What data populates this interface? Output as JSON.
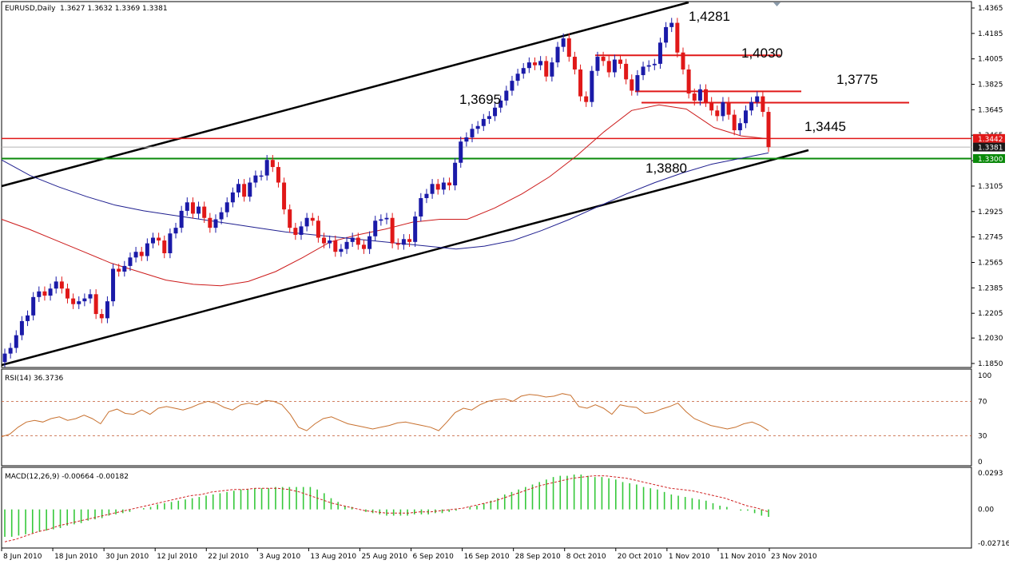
{
  "header": {
    "symbol_label": "EURUSD,Daily",
    "ohlc_label": "1.3627 1.3632 1.3369 1.3381"
  },
  "colors": {
    "bull": "#1a1aa8",
    "bear": "#e01818",
    "ma_fast": "#cc1a1a",
    "ma_slow": "#1f1f8f",
    "rsi": "#c8712f",
    "macd_hist": "#35c83a",
    "macd_signal": "#d02020",
    "trend": "#000000",
    "support": "#0a8a0a",
    "resistance": "#e01818"
  },
  "chart_data": [
    {
      "type": "candlestick",
      "panel": "main",
      "title": "EURUSD,Daily",
      "ohlc_readout": "1.3627 1.3632 1.3369 1.3381",
      "yaxis_ticks": [
        "1.4365",
        "1.4185",
        "1.4005",
        "1.3825",
        "1.3645",
        "1.3465",
        "1.3285",
        "1.3105",
        "1.2925",
        "1.2745",
        "1.2565",
        "1.2385",
        "1.2205",
        "1.2030",
        "1.1850"
      ],
      "ylim": [
        1.185,
        1.4365
      ],
      "xaxis_ticks": [
        "8 Jun 2010",
        "18 Jun 2010",
        "30 Jun 2010",
        "12 Jul 2010",
        "22 Jul 2010",
        "3 Aug 2010",
        "13 Aug 2010",
        "25 Aug 2010",
        "6 Sep 2010",
        "16 Sep 2010",
        "28 Sep 2010",
        "8 Oct 2010",
        "20 Oct 2010",
        "1 Nov 2010",
        "11 Nov 2010",
        "23 Nov 2010"
      ],
      "price_labels": [
        {
          "text": "1.3442",
          "value": 1.3442,
          "style": "red"
        },
        {
          "text": "1.3381",
          "value": 1.3381,
          "style": "dark"
        },
        {
          "text": "1.3300",
          "value": 1.33,
          "style": "green"
        }
      ],
      "annotations": [
        {
          "text": "1,4281"
        },
        {
          "text": "1,4030"
        },
        {
          "text": "1,3775"
        },
        {
          "text": "1,3695"
        },
        {
          "text": "1,3445"
        },
        {
          "text": "1,3880"
        }
      ],
      "candles_close": [
        1.192,
        1.196,
        1.205,
        1.215,
        1.219,
        1.232,
        1.236,
        1.233,
        1.238,
        1.243,
        1.238,
        1.231,
        1.227,
        1.229,
        1.231,
        1.234,
        1.22,
        1.217,
        1.229,
        1.252,
        1.25,
        1.254,
        1.26,
        1.264,
        1.261,
        1.27,
        1.274,
        1.272,
        1.263,
        1.277,
        1.281,
        1.293,
        1.299,
        1.291,
        1.296,
        1.288,
        1.281,
        1.287,
        1.292,
        1.299,
        1.306,
        1.312,
        1.303,
        1.313,
        1.318,
        1.318,
        1.329,
        1.324,
        1.313,
        1.294,
        1.281,
        1.276,
        1.282,
        1.288,
        1.286,
        1.274,
        1.27,
        1.272,
        1.264,
        1.266,
        1.271,
        1.274,
        1.269,
        1.266,
        1.275,
        1.286,
        1.287,
        1.288,
        1.27,
        1.269,
        1.273,
        1.271,
        1.289,
        1.302,
        1.305,
        1.312,
        1.308,
        1.313,
        1.311,
        1.327,
        1.342,
        1.345,
        1.351,
        1.353,
        1.358,
        1.36,
        1.366,
        1.371,
        1.378,
        1.385,
        1.39,
        1.394,
        1.398,
        1.396,
        1.399,
        1.388,
        1.398,
        1.409,
        1.415,
        1.402,
        1.393,
        1.374,
        1.37,
        1.392,
        1.402,
        1.399,
        1.391,
        1.4,
        1.397,
        1.386,
        1.378,
        1.389,
        1.395,
        1.396,
        1.397,
        1.412,
        1.423,
        1.426,
        1.405,
        1.393,
        1.376,
        1.371,
        1.379,
        1.37,
        1.364,
        1.36,
        1.37,
        1.361,
        1.35,
        1.355,
        1.364,
        1.37,
        1.374,
        1.363,
        1.3381
      ],
      "series": [
        {
          "name": "MA fast",
          "values": [
            1.287,
            1.28,
            1.272,
            1.264,
            1.256,
            1.25,
            1.244,
            1.241,
            1.24,
            1.243,
            1.25,
            1.26,
            1.271,
            1.276,
            1.28,
            1.285,
            1.287,
            1.287,
            1.295,
            1.305,
            1.317,
            1.332,
            1.349,
            1.364,
            1.368,
            1.365,
            1.352,
            1.346,
            1.344
          ]
        },
        {
          "name": "MA slow",
          "values": [
            1.329,
            1.318,
            1.31,
            1.303,
            1.297,
            1.293,
            1.29,
            1.287,
            1.284,
            1.281,
            1.278,
            1.276,
            1.274,
            1.272,
            1.27,
            1.268,
            1.266,
            1.268,
            1.272,
            1.279,
            1.287,
            1.296,
            1.305,
            1.313,
            1.32,
            1.326,
            1.33,
            1.334
          ]
        }
      ],
      "trendlines": [
        {
          "name": "upper channel"
        },
        {
          "name": "lower channel"
        },
        {
          "name": "support 1.3300"
        },
        {
          "name": "resistance 1.3442"
        }
      ]
    },
    {
      "type": "line",
      "panel": "rsi",
      "title": "RSI(14) 36.3736",
      "yaxis_ticks": [
        "100",
        "70",
        "30",
        "0"
      ],
      "ylim": [
        0,
        100
      ],
      "levels": [
        70,
        30
      ],
      "series": [
        {
          "name": "RSI(14)",
          "values": [
            29,
            32,
            40,
            46,
            48,
            46,
            50,
            52,
            48,
            50,
            54,
            50,
            44,
            58,
            61,
            56,
            55,
            60,
            55,
            62,
            64,
            62,
            60,
            63,
            67,
            70,
            68,
            63,
            60,
            66,
            68,
            66,
            71,
            70,
            66,
            55,
            40,
            36,
            44,
            50,
            52,
            48,
            44,
            42,
            40,
            38,
            40,
            42,
            45,
            46,
            44,
            42,
            40,
            36,
            46,
            57,
            62,
            60,
            66,
            70,
            72,
            73,
            70,
            76,
            78,
            77,
            75,
            76,
            79,
            77,
            64,
            62,
            66,
            62,
            55,
            66,
            64,
            63,
            56,
            57,
            61,
            64,
            68,
            58,
            50,
            46,
            42,
            40,
            38,
            40,
            44,
            46,
            42,
            36
          ]
        }
      ]
    },
    {
      "type": "bar",
      "panel": "macd",
      "title": "MACD(12,26,9) -0.00664 -0.00182",
      "yaxis_ticks": [
        "0.0293",
        "0.00",
        "-0.02716"
      ],
      "ylim": [
        -0.02716,
        0.0293
      ],
      "series": [
        {
          "name": "MACD",
          "values": [
            -0.022,
            -0.022,
            -0.021,
            -0.02,
            -0.019,
            -0.018,
            -0.017,
            -0.016,
            -0.015,
            -0.013,
            -0.012,
            -0.011,
            -0.009,
            -0.008,
            -0.007,
            -0.005,
            -0.004,
            -0.003,
            -0.002,
            0.0,
            0.001,
            0.002,
            0.004,
            0.005,
            0.006,
            0.007,
            0.008,
            0.009,
            0.01,
            0.011,
            0.012,
            0.013,
            0.014,
            0.015,
            0.016,
            0.016,
            0.017,
            0.017,
            0.017,
            0.018,
            0.018,
            0.018,
            0.018,
            0.018,
            0.018,
            0.016,
            0.013,
            0.009,
            0.006,
            0.003,
            0.002,
            0.0,
            -0.002,
            -0.003,
            -0.004,
            -0.005,
            -0.005,
            -0.005,
            -0.005,
            -0.004,
            -0.004,
            -0.004,
            -0.003,
            -0.003,
            -0.002,
            -0.001,
            0.0,
            0.002,
            0.003,
            0.005,
            0.007,
            0.009,
            0.012,
            0.014,
            0.016,
            0.018,
            0.02,
            0.022,
            0.024,
            0.026,
            0.027,
            0.027,
            0.028,
            0.028,
            0.027,
            0.026,
            0.026,
            0.025,
            0.024,
            0.022,
            0.021,
            0.02,
            0.018,
            0.017,
            0.016,
            0.014,
            0.012,
            0.011,
            0.01,
            0.009,
            0.008,
            0.007,
            0.005,
            0.003,
            0.002,
            0.0,
            -0.001,
            -0.001,
            -0.003,
            -0.005,
            -0.006
          ]
        },
        {
          "name": "Signal",
          "values": [
            -0.026,
            -0.024,
            -0.021,
            -0.018,
            -0.016,
            -0.013,
            -0.011,
            -0.009,
            -0.007,
            -0.005,
            -0.003,
            -0.001,
            0.001,
            0.003,
            0.005,
            0.007,
            0.009,
            0.011,
            0.012,
            0.014,
            0.015,
            0.016,
            0.016,
            0.017,
            0.017,
            0.017,
            0.016,
            0.014,
            0.011,
            0.008,
            0.005,
            0.003,
            0.001,
            -0.001,
            -0.002,
            -0.003,
            -0.003,
            -0.003,
            -0.002,
            -0.002,
            -0.001,
            0.0,
            0.001,
            0.003,
            0.005,
            0.007,
            0.01,
            0.013,
            0.016,
            0.019,
            0.021,
            0.023,
            0.025,
            0.026,
            0.027,
            0.027,
            0.026,
            0.025,
            0.023,
            0.021,
            0.019,
            0.017,
            0.016,
            0.015,
            0.013,
            0.011,
            0.009,
            0.006,
            0.003,
            0.001,
            -0.002
          ]
        }
      ]
    }
  ]
}
